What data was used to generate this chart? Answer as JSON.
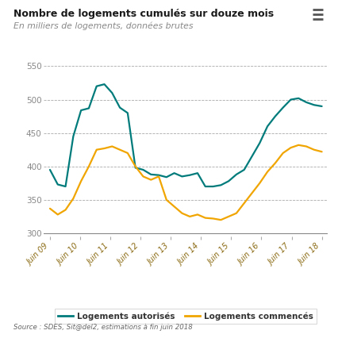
{
  "title": "Nombre de logements cumulés sur douze mois",
  "subtitle": "En milliers de logements, données brutes",
  "source": "Source : SDES, Sit@del2, estimations à fin juin 2018",
  "legend_autorise": "Logements autorisés",
  "legend_commence": "Logements commencés",
  "color_autorise": "#007b7b",
  "color_commence": "#f0a500",
  "ylabel_color": "#888888",
  "title_color": "#1a1a1a",
  "subtitle_color": "#888888",
  "yticks": [
    300,
    350,
    400,
    450,
    500,
    550
  ],
  "xlabels": [
    "Juin 09",
    "Juin 10",
    "Juin 11",
    "Juin 12",
    "Juin 13",
    "Juin 14",
    "Juin 15",
    "Juin 16",
    "Juin 17",
    "Juin 18"
  ],
  "autorise": [
    395,
    373,
    370,
    445,
    484,
    487,
    520,
    523,
    510,
    488,
    480,
    398,
    395,
    388,
    387,
    384,
    390,
    385,
    387,
    390,
    370,
    370,
    372,
    378,
    388,
    395,
    415,
    435,
    460,
    475,
    488,
    500,
    502,
    496,
    492,
    490
  ],
  "commence": [
    337,
    328,
    335,
    352,
    378,
    400,
    425,
    427,
    430,
    425,
    420,
    400,
    385,
    380,
    385,
    350,
    340,
    330,
    325,
    328,
    323,
    322,
    320,
    325,
    330,
    345,
    360,
    375,
    392,
    405,
    420,
    428,
    432,
    430,
    425,
    422
  ]
}
